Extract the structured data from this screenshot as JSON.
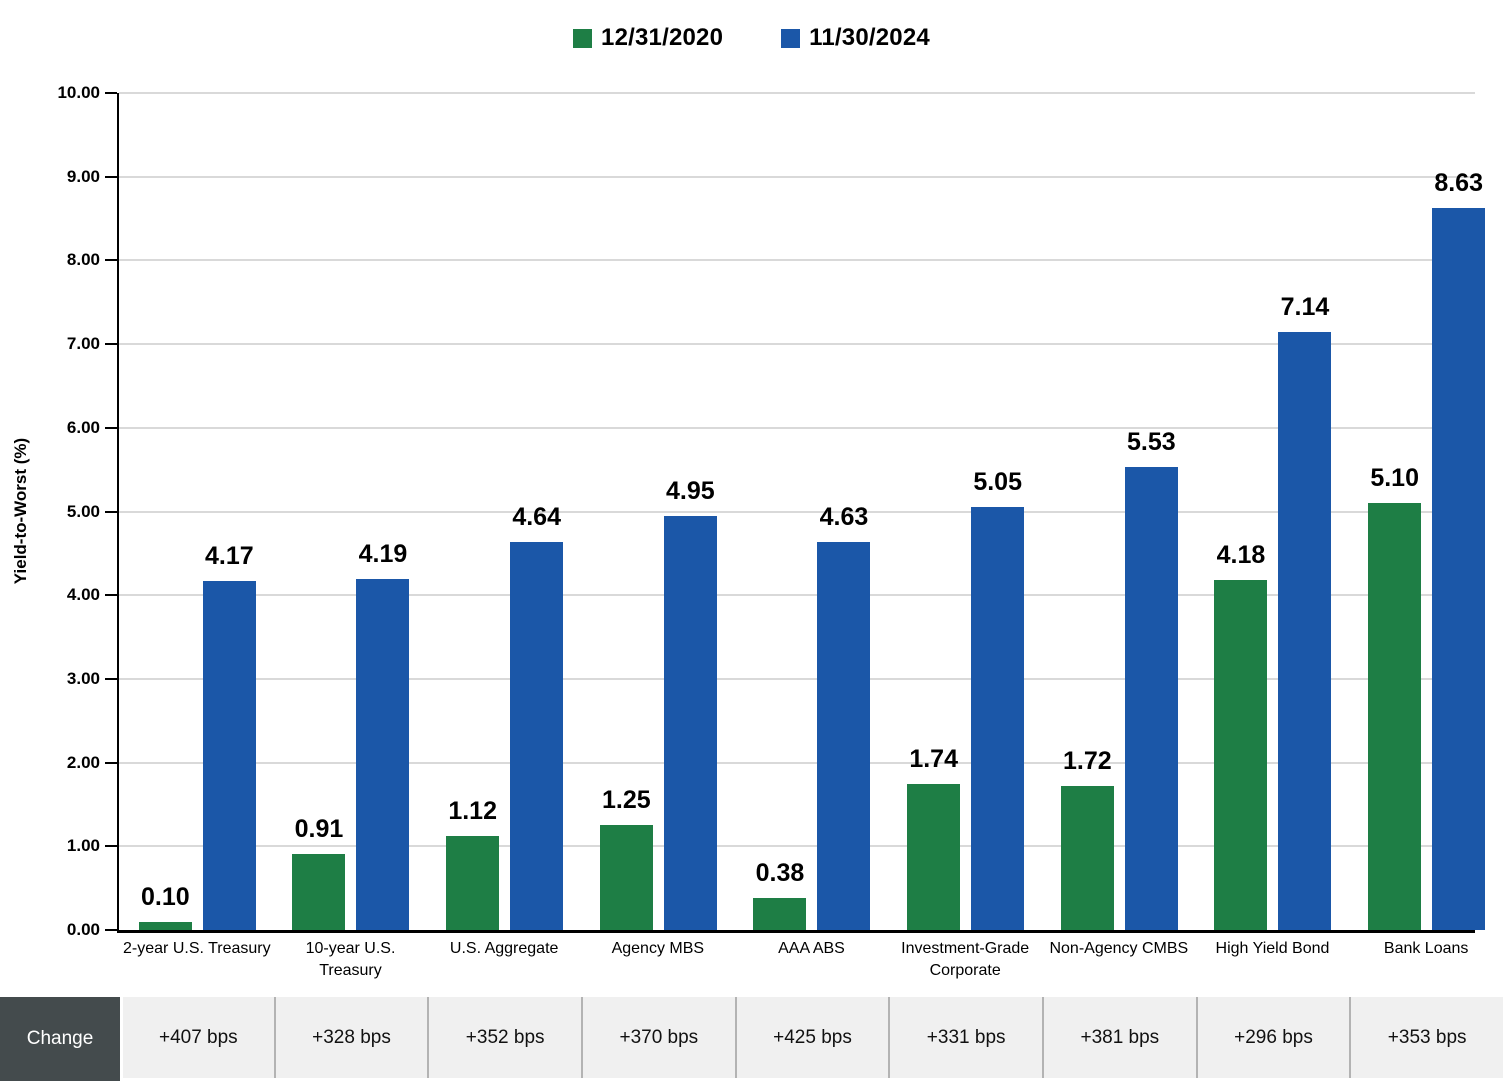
{
  "legend": {
    "items": [
      {
        "name": "series-2020",
        "label": "12/31/2020",
        "color": "#1e7e45"
      },
      {
        "name": "series-2024",
        "label": "11/30/2024",
        "color": "#1b57a8"
      }
    ]
  },
  "chart_data": {
    "type": "bar",
    "title": "",
    "ylabel": "Yield-to-Worst (%)",
    "ylim": [
      0,
      10
    ],
    "ytick_step": 1,
    "ytick_labels": [
      "0.00",
      "1.00",
      "2.00",
      "3.00",
      "4.00",
      "5.00",
      "6.00",
      "7.00",
      "8.00",
      "9.00",
      "10.00"
    ],
    "grid": true,
    "legend_position": "top-center",
    "data_labels": true,
    "categories": [
      "2-year U.S. Treasury",
      "10-year U.S. Treasury",
      "U.S. Aggregate",
      "Agency MBS",
      "AAA ABS",
      "Investment-Grade Corporate",
      "Non-Agency CMBS",
      "High Yield Bond",
      "Bank Loans"
    ],
    "series": [
      {
        "name": "12/31/2020",
        "color": "#1e7e45",
        "values": [
          0.1,
          0.91,
          1.12,
          1.25,
          0.38,
          1.74,
          1.72,
          4.18,
          5.1
        ],
        "labels": [
          "0.10",
          "0.91",
          "1.12",
          "1.25",
          "0.38",
          "1.74",
          "1.72",
          "4.18",
          "5.10"
        ]
      },
      {
        "name": "11/30/2024",
        "color": "#1b57a8",
        "values": [
          4.17,
          4.19,
          4.64,
          4.95,
          4.63,
          5.05,
          5.53,
          7.14,
          8.63
        ],
        "labels": [
          "4.17",
          "4.19",
          "4.64",
          "4.95",
          "4.63",
          "5.05",
          "5.53",
          "7.14",
          "8.63"
        ]
      }
    ]
  },
  "change_row": {
    "header": "Change",
    "values": [
      "+407 bps",
      "+328 bps",
      "+352 bps",
      "+370 bps",
      "+425 bps",
      "+331 bps",
      "+381 bps",
      "+296 bps",
      "+353 bps"
    ],
    "header_bg": "#444b4d",
    "cell_bg": "#f0f0f0"
  },
  "colors": {
    "green": "#1e7e45",
    "blue": "#1b57a8",
    "gridline": "#d9d9d9",
    "axis": "#000000"
  }
}
